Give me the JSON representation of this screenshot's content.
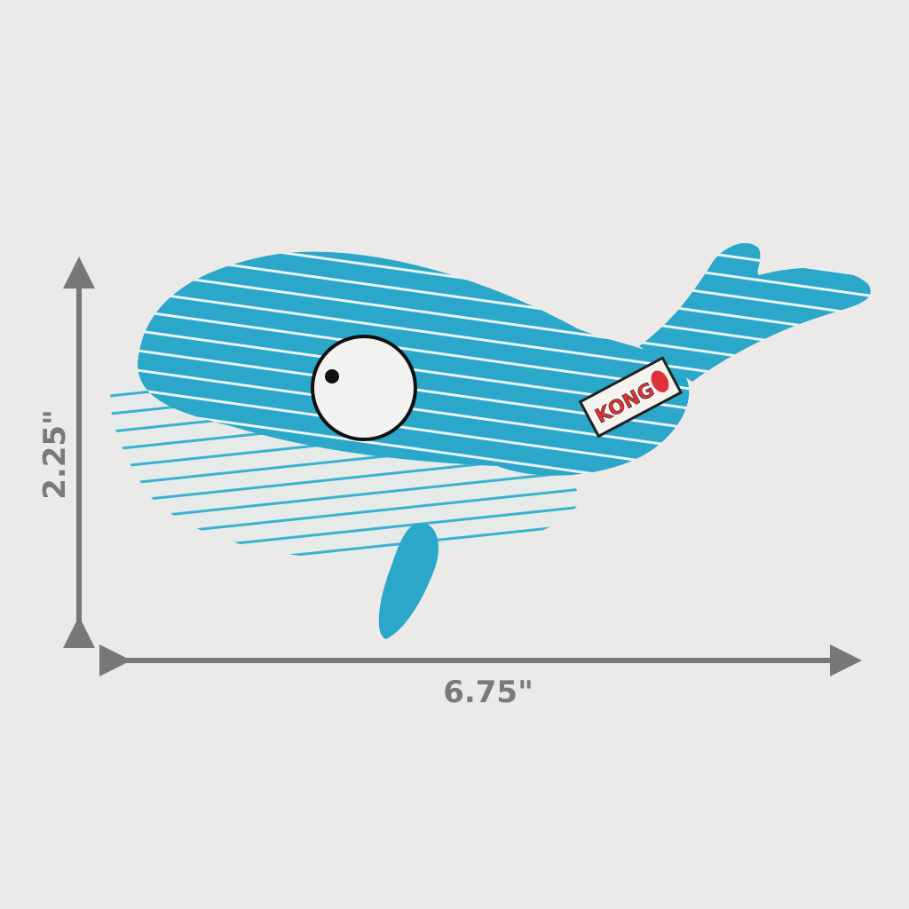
{
  "dimensions": {
    "width": "6.75\"",
    "height": "2.25\""
  },
  "product": {
    "brand_tag": "KONG",
    "colors": {
      "body": "#2aa7c9",
      "belly": "#e9eeee",
      "tag_text": "#e0313a",
      "arrow": "#777777",
      "background": "#ebeae8"
    }
  }
}
